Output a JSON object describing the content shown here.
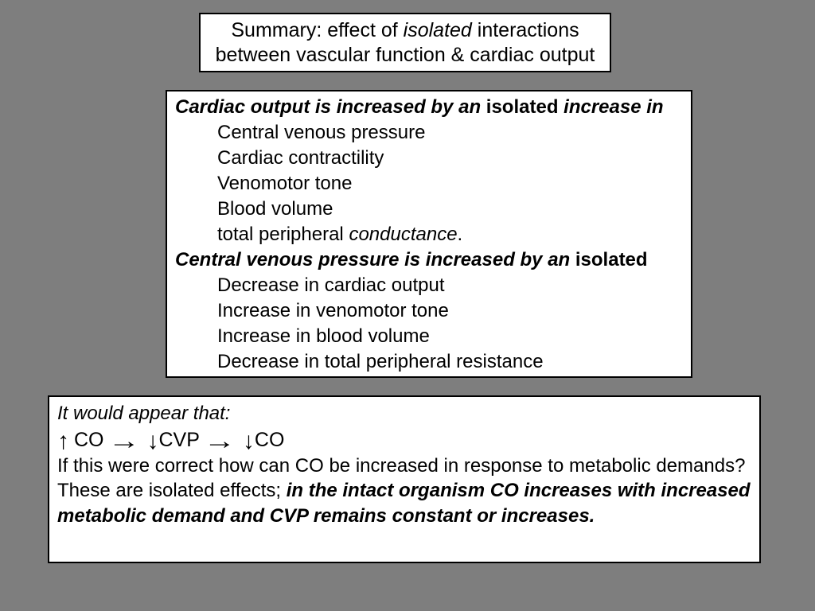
{
  "slide": {
    "background_color": "#7e7e7e",
    "box_background": "#ffffff",
    "box_border_color": "#000000",
    "text_color": "#000000"
  },
  "title_box": {
    "line1_pre": "Summary: effect of ",
    "line1_italic": "isolated",
    "line1_post": " interactions",
    "line2": "between vascular function & cardiac output"
  },
  "summary_box": {
    "heading1_pre": "Cardiac output is increased by an ",
    "heading1_bold": "isolated",
    "heading1_post": " increase in",
    "list1": [
      "Central venous pressure",
      "Cardiac contractility",
      "Venomotor tone",
      "Blood volume"
    ],
    "list1_tpc_pre": "total peripheral ",
    "list1_tpc_italic": "conductance",
    "list1_tpc_post": ".",
    "heading2_pre": "Central venous pressure is increased by an ",
    "heading2_bold": "isolated",
    "list2": [
      "Decrease in cardiac output",
      "Increase in venomotor tone",
      "Increase in blood volume",
      "Decrease in total peripheral resistance"
    ]
  },
  "conclusion_box": {
    "intro": "It would appear that:",
    "formula": {
      "up_arrow": "↑",
      "co1": "CO",
      "right_arrow1": "→",
      "down_arrow1": "↓",
      "cvp": "CVP",
      "right_arrow2": "→",
      "down_arrow2": "↓",
      "co2": "CO"
    },
    "question": "If this were correct how can CO be increased in response to metabolic demands?",
    "final_pre": "These are isolated effects; ",
    "final_emph": "in the intact organism CO increases with increased metabolic demand and CVP remains constant or increases."
  }
}
